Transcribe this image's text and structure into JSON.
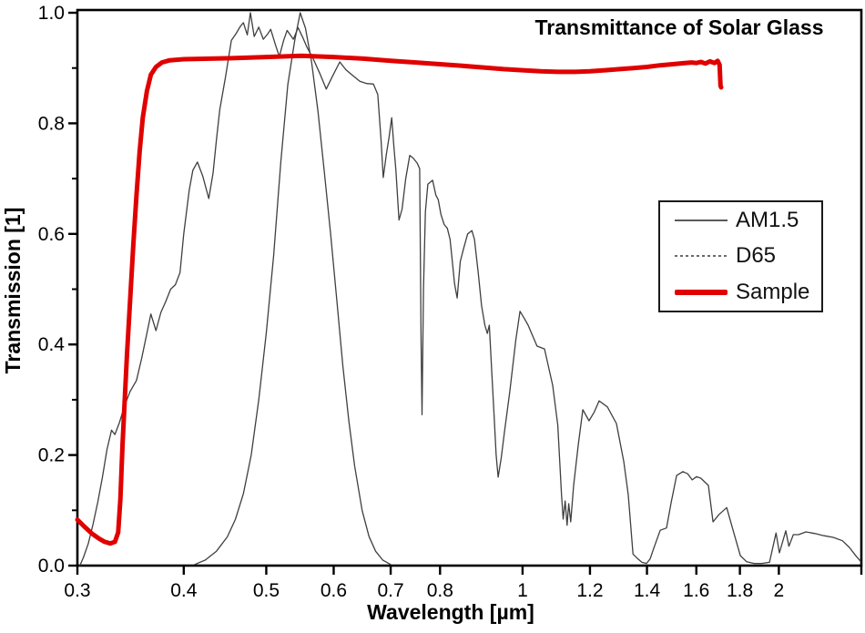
{
  "chart": {
    "title": "Transmittance of Solar Glass",
    "xlabel": "Wavelength [µm]",
    "ylabel": "Transmission [1]"
  },
  "colors": {
    "sample_red": "#e00000",
    "thin_line": "#3f3f3f",
    "frame": "#000000",
    "tick_text": "#000000"
  },
  "legend": {
    "items": [
      {
        "label": "AM1.5",
        "style": "thin-solid",
        "color": "#5a5a5a"
      },
      {
        "label": "D65",
        "style": "fine-dash",
        "color": "#6a6a6a"
      },
      {
        "label": "Sample",
        "style": "thick-solid",
        "color": "#e00000"
      }
    ]
  },
  "chart_data": {
    "type": "line",
    "title": "Transmittance of Solar Glass",
    "xlabel": "Wavelength [µm]",
    "ylabel": "Transmission [1]",
    "x_scale": "log",
    "x_range": [
      0.3,
      2.5
    ],
    "y_range": [
      0.0,
      1.0
    ],
    "grid": false,
    "legend_position": "right-middle",
    "x_ticks": [
      0.3,
      0.4,
      0.5,
      0.6,
      0.7,
      0.8,
      1,
      1.2,
      1.4,
      1.6,
      1.8,
      2,
      2.5
    ],
    "x_tick_labels": [
      "0.3",
      "0.4",
      "0.5",
      "0.6",
      "0.7",
      "0.8",
      "1",
      "1.2",
      "1.4",
      "1.6",
      "1.8",
      "2",
      ""
    ],
    "y_ticks_major": [
      0.0,
      0.2,
      0.4,
      0.6,
      0.8,
      1.0
    ],
    "y_tick_labels": [
      "0.0",
      "0.2",
      "0.4",
      "0.6",
      "0.8",
      "1.0"
    ],
    "y_ticks_minor": [
      0.1,
      0.3,
      0.5,
      0.7,
      0.9
    ],
    "series": [
      {
        "name": "AM1.5",
        "color": "#3f3f3f",
        "width": 1.3,
        "points": [
          [
            0.302,
            0.0
          ],
          [
            0.305,
            0.015
          ],
          [
            0.309,
            0.04
          ],
          [
            0.313,
            0.075
          ],
          [
            0.317,
            0.115
          ],
          [
            0.321,
            0.16
          ],
          [
            0.325,
            0.21
          ],
          [
            0.329,
            0.245
          ],
          [
            0.332,
            0.237
          ],
          [
            0.336,
            0.258
          ],
          [
            0.341,
            0.29
          ],
          [
            0.346,
            0.315
          ],
          [
            0.352,
            0.335
          ],
          [
            0.357,
            0.375
          ],
          [
            0.362,
            0.42
          ],
          [
            0.366,
            0.455
          ],
          [
            0.371,
            0.425
          ],
          [
            0.376,
            0.458
          ],
          [
            0.381,
            0.478
          ],
          [
            0.386,
            0.5
          ],
          [
            0.391,
            0.508
          ],
          [
            0.396,
            0.53
          ],
          [
            0.4,
            0.6
          ],
          [
            0.406,
            0.68
          ],
          [
            0.41,
            0.715
          ],
          [
            0.415,
            0.73
          ],
          [
            0.421,
            0.705
          ],
          [
            0.428,
            0.664
          ],
          [
            0.433,
            0.71
          ],
          [
            0.437,
            0.77
          ],
          [
            0.441,
            0.825
          ],
          [
            0.448,
            0.885
          ],
          [
            0.455,
            0.95
          ],
          [
            0.461,
            0.963
          ],
          [
            0.466,
            0.975
          ],
          [
            0.47,
            0.982
          ],
          [
            0.475,
            0.96
          ],
          [
            0.479,
            1.0
          ],
          [
            0.484,
            0.957
          ],
          [
            0.49,
            0.974
          ],
          [
            0.496,
            0.952
          ],
          [
            0.502,
            0.962
          ],
          [
            0.506,
            0.97
          ],
          [
            0.513,
            0.94
          ],
          [
            0.518,
            0.921
          ],
          [
            0.524,
            0.95
          ],
          [
            0.529,
            0.968
          ],
          [
            0.538,
            0.952
          ],
          [
            0.545,
            0.973
          ],
          [
            0.552,
            0.955
          ],
          [
            0.558,
            0.938
          ],
          [
            0.568,
            0.916
          ],
          [
            0.578,
            0.89
          ],
          [
            0.588,
            0.862
          ],
          [
            0.598,
            0.885
          ],
          [
            0.61,
            0.911
          ],
          [
            0.62,
            0.897
          ],
          [
            0.63,
            0.888
          ],
          [
            0.644,
            0.876
          ],
          [
            0.656,
            0.872
          ],
          [
            0.668,
            0.871
          ],
          [
            0.676,
            0.852
          ],
          [
            0.682,
            0.77
          ],
          [
            0.686,
            0.702
          ],
          [
            0.692,
            0.745
          ],
          [
            0.697,
            0.775
          ],
          [
            0.702,
            0.81
          ],
          [
            0.706,
            0.76
          ],
          [
            0.71,
            0.715
          ],
          [
            0.716,
            0.625
          ],
          [
            0.722,
            0.645
          ],
          [
            0.729,
            0.7
          ],
          [
            0.737,
            0.742
          ],
          [
            0.744,
            0.737
          ],
          [
            0.752,
            0.728
          ],
          [
            0.757,
            0.718
          ],
          [
            0.76,
            0.4
          ],
          [
            0.762,
            0.273
          ],
          [
            0.765,
            0.5
          ],
          [
            0.769,
            0.64
          ],
          [
            0.774,
            0.69
          ],
          [
            0.784,
            0.697
          ],
          [
            0.791,
            0.67
          ],
          [
            0.796,
            0.662
          ],
          [
            0.802,
            0.635
          ],
          [
            0.809,
            0.617
          ],
          [
            0.816,
            0.61
          ],
          [
            0.822,
            0.59
          ],
          [
            0.826,
            0.558
          ],
          [
            0.832,
            0.51
          ],
          [
            0.838,
            0.484
          ],
          [
            0.845,
            0.55
          ],
          [
            0.852,
            0.572
          ],
          [
            0.862,
            0.6
          ],
          [
            0.872,
            0.606
          ],
          [
            0.878,
            0.59
          ],
          [
            0.887,
            0.53
          ],
          [
            0.895,
            0.47
          ],
          [
            0.903,
            0.435
          ],
          [
            0.909,
            0.42
          ],
          [
            0.914,
            0.435
          ],
          [
            0.92,
            0.35
          ],
          [
            0.926,
            0.27
          ],
          [
            0.931,
            0.2
          ],
          [
            0.936,
            0.16
          ],
          [
            0.944,
            0.195
          ],
          [
            0.952,
            0.24
          ],
          [
            0.966,
            0.315
          ],
          [
            0.982,
            0.408
          ],
          [
            0.993,
            0.46
          ],
          [
            1.004,
            0.448
          ],
          [
            1.015,
            0.435
          ],
          [
            1.04,
            0.397
          ],
          [
            1.061,
            0.392
          ],
          [
            1.085,
            0.326
          ],
          [
            1.1,
            0.254
          ],
          [
            1.111,
            0.128
          ],
          [
            1.116,
            0.084
          ],
          [
            1.122,
            0.117
          ],
          [
            1.128,
            0.073
          ],
          [
            1.133,
            0.112
          ],
          [
            1.139,
            0.079
          ],
          [
            1.148,
            0.145
          ],
          [
            1.163,
            0.22
          ],
          [
            1.177,
            0.282
          ],
          [
            1.197,
            0.262
          ],
          [
            1.214,
            0.278
          ],
          [
            1.23,
            0.298
          ],
          [
            1.258,
            0.287
          ],
          [
            1.289,
            0.257
          ],
          [
            1.315,
            0.188
          ],
          [
            1.331,
            0.128
          ],
          [
            1.348,
            0.021
          ],
          [
            1.364,
            0.013
          ],
          [
            1.381,
            0.006
          ],
          [
            1.398,
            0.004
          ],
          [
            1.412,
            0.012
          ],
          [
            1.425,
            0.03
          ],
          [
            1.451,
            0.064
          ],
          [
            1.476,
            0.068
          ],
          [
            1.495,
            0.115
          ],
          [
            1.517,
            0.163
          ],
          [
            1.543,
            0.17
          ],
          [
            1.563,
            0.166
          ],
          [
            1.582,
            0.155
          ],
          [
            1.601,
            0.161
          ],
          [
            1.62,
            0.158
          ],
          [
            1.653,
            0.145
          ],
          [
            1.674,
            0.079
          ],
          [
            1.7,
            0.092
          ],
          [
            1.737,
            0.105
          ],
          [
            1.77,
            0.06
          ],
          [
            1.802,
            0.018
          ],
          [
            1.833,
            0.007
          ],
          [
            1.87,
            0.004
          ],
          [
            1.91,
            0.004
          ],
          [
            1.95,
            0.006
          ],
          [
            1.985,
            0.059
          ],
          [
            2.003,
            0.023
          ],
          [
            2.038,
            0.063
          ],
          [
            2.055,
            0.035
          ],
          [
            2.08,
            0.056
          ],
          [
            2.11,
            0.056
          ],
          [
            2.152,
            0.061
          ],
          [
            2.205,
            0.058
          ],
          [
            2.26,
            0.054
          ],
          [
            2.317,
            0.051
          ],
          [
            2.375,
            0.045
          ],
          [
            2.42,
            0.033
          ],
          [
            2.465,
            0.017
          ],
          [
            2.494,
            0.008
          ]
        ]
      },
      {
        "name": "D65",
        "color": "#3f3f3f",
        "width": 1.3,
        "points": [
          [
            0.412,
            0.002
          ],
          [
            0.424,
            0.01
          ],
          [
            0.437,
            0.026
          ],
          [
            0.45,
            0.052
          ],
          [
            0.46,
            0.084
          ],
          [
            0.47,
            0.13
          ],
          [
            0.48,
            0.2
          ],
          [
            0.49,
            0.3
          ],
          [
            0.5,
            0.42
          ],
          [
            0.51,
            0.56
          ],
          [
            0.52,
            0.73
          ],
          [
            0.53,
            0.87
          ],
          [
            0.54,
            0.95
          ],
          [
            0.548,
            1.0
          ],
          [
            0.556,
            0.972
          ],
          [
            0.565,
            0.912
          ],
          [
            0.575,
            0.822
          ],
          [
            0.585,
            0.712
          ],
          [
            0.595,
            0.6
          ],
          [
            0.605,
            0.482
          ],
          [
            0.615,
            0.362
          ],
          [
            0.625,
            0.262
          ],
          [
            0.635,
            0.18
          ],
          [
            0.648,
            0.1
          ],
          [
            0.66,
            0.053
          ],
          [
            0.672,
            0.026
          ],
          [
            0.685,
            0.01
          ],
          [
            0.7,
            0.002
          ]
        ]
      },
      {
        "name": "Sample",
        "color": "#e00000",
        "width": 5,
        "points": [
          [
            0.3,
            0.083
          ],
          [
            0.306,
            0.07
          ],
          [
            0.312,
            0.058
          ],
          [
            0.318,
            0.049
          ],
          [
            0.323,
            0.043
          ],
          [
            0.328,
            0.04
          ],
          [
            0.332,
            0.043
          ],
          [
            0.335,
            0.06
          ],
          [
            0.337,
            0.12
          ],
          [
            0.339,
            0.22
          ],
          [
            0.341,
            0.3
          ],
          [
            0.343,
            0.38
          ],
          [
            0.346,
            0.48
          ],
          [
            0.349,
            0.58
          ],
          [
            0.352,
            0.67
          ],
          [
            0.355,
            0.75
          ],
          [
            0.358,
            0.81
          ],
          [
            0.362,
            0.858
          ],
          [
            0.366,
            0.888
          ],
          [
            0.371,
            0.902
          ],
          [
            0.377,
            0.91
          ],
          [
            0.385,
            0.914
          ],
          [
            0.4,
            0.916
          ],
          [
            0.43,
            0.917
          ],
          [
            0.46,
            0.918
          ],
          [
            0.5,
            0.92
          ],
          [
            0.55,
            0.922
          ],
          [
            0.6,
            0.92
          ],
          [
            0.65,
            0.917
          ],
          [
            0.7,
            0.913
          ],
          [
            0.75,
            0.91
          ],
          [
            0.8,
            0.907
          ],
          [
            0.85,
            0.904
          ],
          [
            0.9,
            0.901
          ],
          [
            0.95,
            0.898
          ],
          [
            1.0,
            0.896
          ],
          [
            1.05,
            0.894
          ],
          [
            1.1,
            0.893
          ],
          [
            1.15,
            0.893
          ],
          [
            1.2,
            0.894
          ],
          [
            1.25,
            0.896
          ],
          [
            1.3,
            0.898
          ],
          [
            1.35,
            0.9
          ],
          [
            1.4,
            0.902
          ],
          [
            1.45,
            0.905
          ],
          [
            1.5,
            0.907
          ],
          [
            1.55,
            0.909
          ],
          [
            1.58,
            0.91
          ],
          [
            1.6,
            0.909
          ],
          [
            1.62,
            0.911
          ],
          [
            1.64,
            0.908
          ],
          [
            1.66,
            0.912
          ],
          [
            1.68,
            0.909
          ],
          [
            1.695,
            0.913
          ],
          [
            1.704,
            0.906
          ],
          [
            1.708,
            0.868
          ],
          [
            1.711,
            0.865
          ]
        ]
      }
    ]
  }
}
